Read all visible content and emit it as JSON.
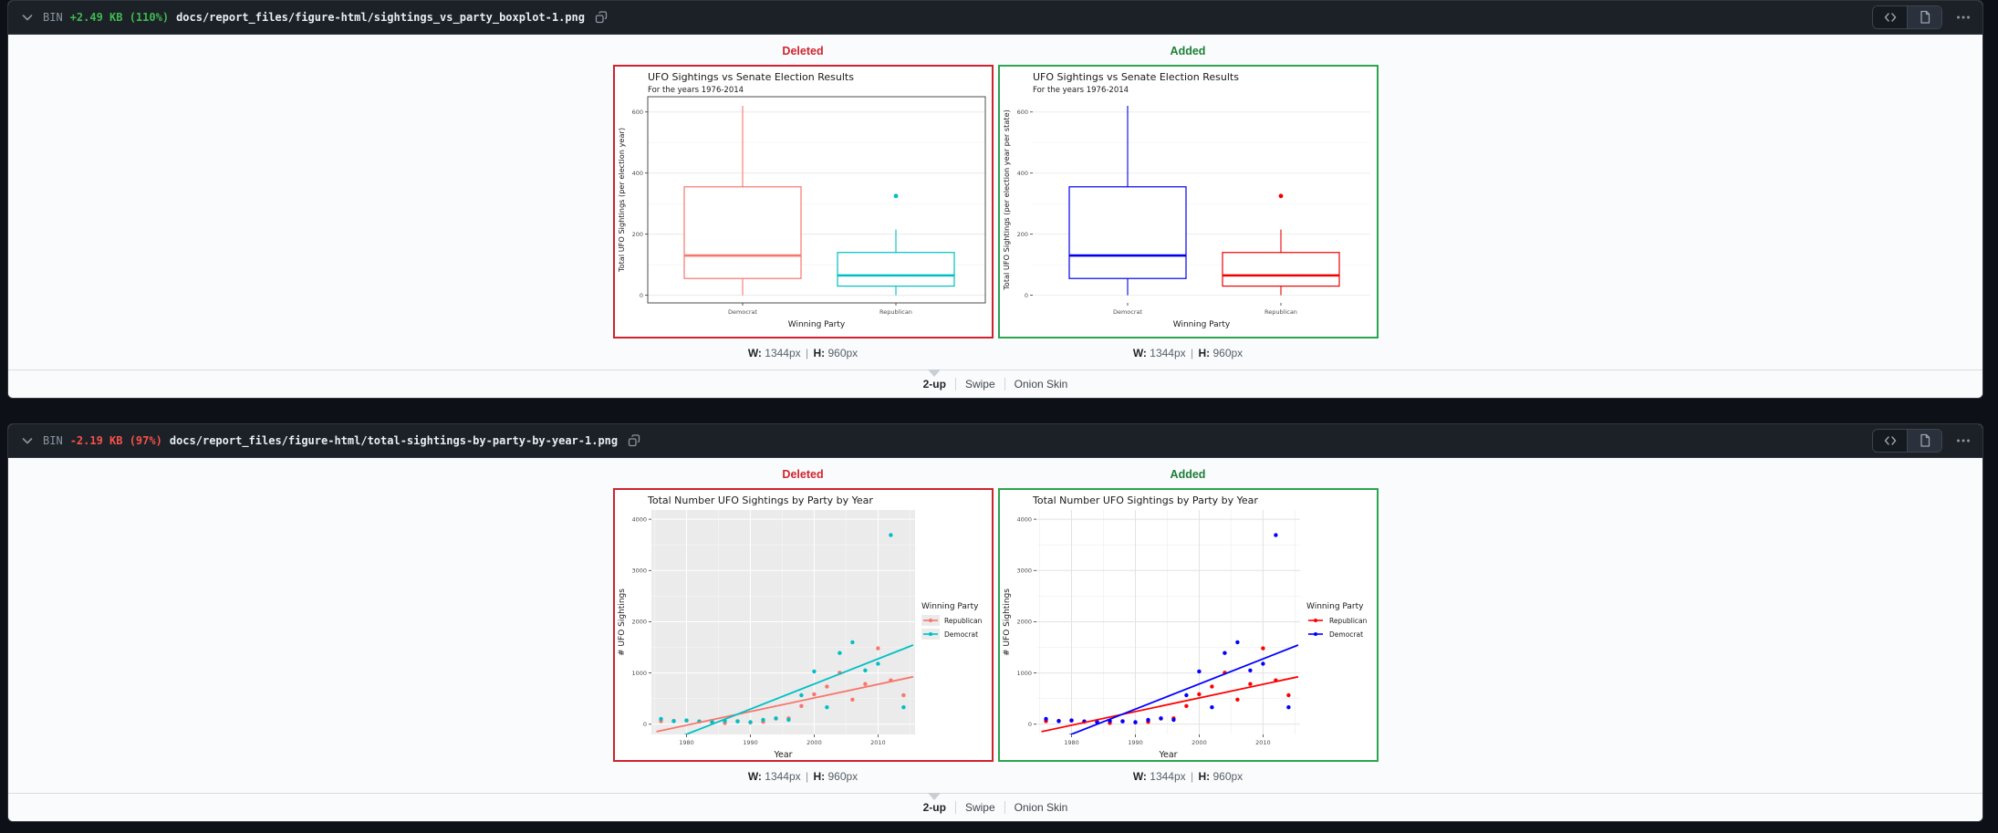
{
  "colors": {
    "deleted_text": "#d1242f",
    "added_text": "#1a7f37",
    "deleted_border": "#cf222e",
    "added_border": "#2da44e"
  },
  "files": [
    {
      "header": {
        "bin": "BIN",
        "delta": "+2.49 KB (110%)",
        "delta_color": "#3fb950",
        "path": "docs/report_files/figure-html/sightings_vs_party_boxplot-1.png"
      },
      "deleted_label": "Deleted",
      "added_label": "Added",
      "caption": {
        "w_label": "W:",
        "w_value": "1344px",
        "sep": "|",
        "h_label": "H:",
        "h_value": "960px"
      },
      "controls": {
        "two_up": "2-up",
        "swipe": "Swipe",
        "onion_skin": "Onion Skin"
      }
    },
    {
      "header": {
        "bin": "BIN",
        "delta": "-2.19 KB (97%)",
        "delta_color": "#f85149",
        "path": "docs/report_files/figure-html/total-sightings-by-party-by-year-1.png"
      },
      "deleted_label": "Deleted",
      "added_label": "Added",
      "caption": {
        "w_label": "W:",
        "w_value": "1344px",
        "sep": "|",
        "h_label": "H:",
        "h_value": "960px"
      },
      "controls": {
        "two_up": "2-up",
        "swipe": "Swipe",
        "onion_skin": "Onion Skin"
      }
    }
  ],
  "chart_data": [
    {
      "type": "boxplot",
      "variant": "deleted",
      "title": "UFO Sightings vs Senate Election Results",
      "subtitle": "For the years 1976-2014",
      "xlabel": "Winning Party",
      "ylabel": "Total UFO Sightings (per election year)",
      "ylim": [
        -25,
        650
      ],
      "yticks": [
        0,
        200,
        400,
        600
      ],
      "yticks_minor": [
        100,
        300,
        500
      ],
      "style": {
        "panel_bg": "#ffffff",
        "grid": "#e9e9e9",
        "panel_border": "#4d4d4d"
      },
      "boxes": [
        {
          "category": "Democrat",
          "color": "#F8766D",
          "whisker_low": 0,
          "q1": 55,
          "median": 130,
          "q3": 355,
          "whisker_high": 620,
          "outliers": []
        },
        {
          "category": "Republican",
          "color": "#00BFC4",
          "whisker_low": 0,
          "q1": 30,
          "median": 65,
          "q3": 140,
          "whisker_high": 215,
          "outliers": [
            325
          ]
        }
      ]
    },
    {
      "type": "boxplot",
      "variant": "added",
      "title": "UFO Sightings vs Senate Election Results",
      "subtitle": "For the years 1976-2014",
      "xlabel": "Winning Party",
      "ylabel": "Total UFO Sightings (per election year per state)",
      "ylim": [
        -25,
        650
      ],
      "yticks": [
        0,
        200,
        400,
        600
      ],
      "yticks_minor": [
        100,
        300,
        500
      ],
      "style": {
        "panel_bg": "#ffffff",
        "grid": "#ededed",
        "panel_border": null
      },
      "boxes": [
        {
          "category": "Democrat",
          "color": "#0000EE",
          "whisker_low": 0,
          "q1": 55,
          "median": 130,
          "q3": 355,
          "whisker_high": 620,
          "outliers": []
        },
        {
          "category": "Republican",
          "color": "#EE0000",
          "whisker_low": 0,
          "q1": 30,
          "median": 65,
          "q3": 140,
          "whisker_high": 215,
          "outliers": [
            325
          ]
        }
      ]
    },
    {
      "type": "scatter",
      "variant": "deleted",
      "title": "Total Number UFO Sightings by Party by Year",
      "xlabel": "Year",
      "ylabel": "# UFO Sightings",
      "legend_title": "Winning Party",
      "xlim": [
        1974.5,
        2015.8
      ],
      "ylim": [
        -200,
        4180
      ],
      "xticks": [
        1980,
        1990,
        2000,
        2010
      ],
      "xticks_minor": [
        1975,
        1985,
        1995,
        2005,
        2015
      ],
      "yticks": [
        0,
        1000,
        2000,
        3000,
        4000
      ],
      "yticks_minor": [
        500,
        1500,
        2500,
        3500
      ],
      "style": {
        "panel_bg": "#ebebeb",
        "grid": "#ffffff",
        "legend_key_bg": "#ebebeb"
      },
      "series": [
        {
          "name": "Republican",
          "color": "#F8766D",
          "points": [
            [
              1976,
              60
            ],
            [
              1978,
              65
            ],
            [
              1980,
              70
            ],
            [
              1982,
              50
            ],
            [
              1984,
              40
            ],
            [
              1986,
              25
            ],
            [
              1988,
              60
            ],
            [
              1990,
              35
            ],
            [
              1992,
              45
            ],
            [
              1994,
              110
            ],
            [
              1996,
              115
            ],
            [
              1998,
              355
            ],
            [
              2000,
              585
            ],
            [
              2002,
              735
            ],
            [
              2004,
              1005
            ],
            [
              2006,
              480
            ],
            [
              2008,
              785
            ],
            [
              2010,
              1480
            ],
            [
              2012,
              855
            ],
            [
              2014,
              565
            ]
          ],
          "trend": [
            [
              1975.3,
              -145
            ],
            [
              2015.5,
              925
            ]
          ]
        },
        {
          "name": "Democrat",
          "color": "#00BFC4",
          "points": [
            [
              1976,
              105
            ],
            [
              1978,
              60
            ],
            [
              1980,
              75
            ],
            [
              1982,
              55
            ],
            [
              1984,
              45
            ],
            [
              1986,
              65
            ],
            [
              1988,
              55
            ],
            [
              1990,
              40
            ],
            [
              1992,
              85
            ],
            [
              1994,
              115
            ],
            [
              1996,
              85
            ],
            [
              1998,
              565
            ],
            [
              2000,
              1030
            ],
            [
              2002,
              330
            ],
            [
              2004,
              1390
            ],
            [
              2006,
              1600
            ],
            [
              2008,
              1050
            ],
            [
              2010,
              1180
            ],
            [
              2012,
              3690
            ],
            [
              2014,
              330
            ]
          ],
          "trend": [
            [
              1978.8,
              -255
            ],
            [
              2015.5,
              1545
            ]
          ]
        }
      ]
    },
    {
      "type": "scatter",
      "variant": "added",
      "title": "Total Number UFO Sightings by Party by Year",
      "xlabel": "Year",
      "ylabel": "# UFO Sightings",
      "legend_title": "Winning Party",
      "xlim": [
        1974.5,
        2015.8
      ],
      "ylim": [
        -200,
        4180
      ],
      "xticks": [
        1980,
        1990,
        2000,
        2010
      ],
      "xticks_minor": [
        1975,
        1985,
        1995,
        2005,
        2015
      ],
      "yticks": [
        0,
        1000,
        2000,
        3000,
        4000
      ],
      "yticks_minor": [
        500,
        1500,
        2500,
        3500
      ],
      "style": {
        "panel_bg": "#ffffff",
        "grid": "#e2e2e2",
        "legend_key_bg": "#ffffff"
      },
      "series": [
        {
          "name": "Republican",
          "color": "#FF0000",
          "points": [
            [
              1976,
              60
            ],
            [
              1978,
              65
            ],
            [
              1980,
              70
            ],
            [
              1982,
              50
            ],
            [
              1984,
              40
            ],
            [
              1986,
              25
            ],
            [
              1988,
              60
            ],
            [
              1990,
              35
            ],
            [
              1992,
              45
            ],
            [
              1994,
              110
            ],
            [
              1996,
              115
            ],
            [
              1998,
              355
            ],
            [
              2000,
              585
            ],
            [
              2002,
              735
            ],
            [
              2004,
              1005
            ],
            [
              2006,
              480
            ],
            [
              2008,
              785
            ],
            [
              2010,
              1480
            ],
            [
              2012,
              855
            ],
            [
              2014,
              565
            ]
          ],
          "trend": [
            [
              1975.3,
              -145
            ],
            [
              2015.5,
              925
            ]
          ]
        },
        {
          "name": "Democrat",
          "color": "#0000FF",
          "points": [
            [
              1976,
              105
            ],
            [
              1978,
              60
            ],
            [
              1980,
              75
            ],
            [
              1982,
              55
            ],
            [
              1984,
              45
            ],
            [
              1986,
              65
            ],
            [
              1988,
              55
            ],
            [
              1990,
              40
            ],
            [
              1992,
              85
            ],
            [
              1994,
              115
            ],
            [
              1996,
              85
            ],
            [
              1998,
              565
            ],
            [
              2000,
              1030
            ],
            [
              2002,
              330
            ],
            [
              2004,
              1390
            ],
            [
              2006,
              1600
            ],
            [
              2008,
              1050
            ],
            [
              2010,
              1180
            ],
            [
              2012,
              3690
            ],
            [
              2014,
              330
            ]
          ],
          "trend": [
            [
              1978.8,
              -255
            ],
            [
              2015.5,
              1545
            ]
          ]
        }
      ]
    }
  ]
}
